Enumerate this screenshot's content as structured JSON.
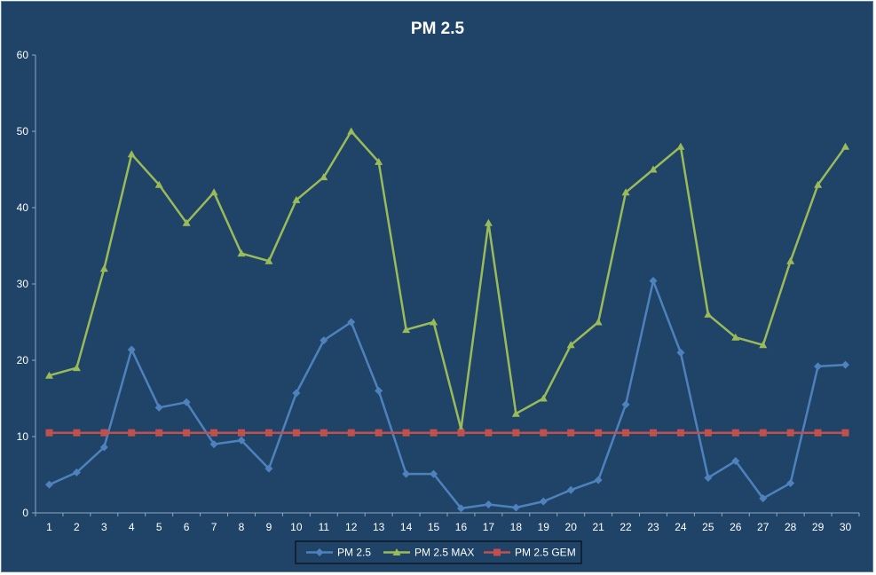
{
  "chart_data": {
    "type": "line",
    "title": "PM 2.5",
    "xlabel": "",
    "ylabel": "",
    "categories": [
      "1",
      "2",
      "3",
      "4",
      "5",
      "6",
      "7",
      "8",
      "9",
      "10",
      "11",
      "12",
      "13",
      "14",
      "15",
      "16",
      "17",
      "18",
      "19",
      "20",
      "21",
      "22",
      "23",
      "24",
      "25",
      "26",
      "27",
      "28",
      "29",
      "30"
    ],
    "ylim": [
      0,
      60
    ],
    "yticks": [
      "0",
      "10",
      "20",
      "30",
      "40",
      "50",
      "60"
    ],
    "grid": false,
    "legend": "bottom",
    "series": [
      {
        "name": "PM 2.5",
        "color": "#4f81bd",
        "marker": "diamond",
        "values": [
          3.7,
          5.3,
          8.6,
          21.4,
          13.8,
          14.5,
          9.0,
          9.5,
          5.8,
          15.7,
          22.6,
          25.0,
          16.0,
          5.1,
          5.1,
          0.6,
          1.1,
          0.7,
          1.5,
          3.0,
          4.3,
          14.2,
          30.4,
          21.0,
          4.6,
          6.8,
          1.9,
          3.9,
          19.2,
          19.4
        ]
      },
      {
        "name": "PM 2.5 MAX",
        "color": "#9bbb59",
        "marker": "triangle",
        "values": [
          18,
          19,
          32,
          47,
          43,
          38,
          42,
          34,
          33,
          41,
          44,
          50,
          46,
          24,
          25,
          11,
          38,
          13,
          15,
          22,
          25,
          42,
          45,
          48,
          26,
          23,
          22,
          33,
          43,
          48
        ]
      },
      {
        "name": "PM 2.5 GEM",
        "color": "#c0504d",
        "marker": "square",
        "values": [
          10.5,
          10.5,
          10.5,
          10.5,
          10.5,
          10.5,
          10.5,
          10.5,
          10.5,
          10.5,
          10.5,
          10.5,
          10.5,
          10.5,
          10.5,
          10.5,
          10.5,
          10.5,
          10.5,
          10.5,
          10.5,
          10.5,
          10.5,
          10.5,
          10.5,
          10.5,
          10.5,
          10.5,
          10.5,
          10.5
        ]
      }
    ]
  }
}
